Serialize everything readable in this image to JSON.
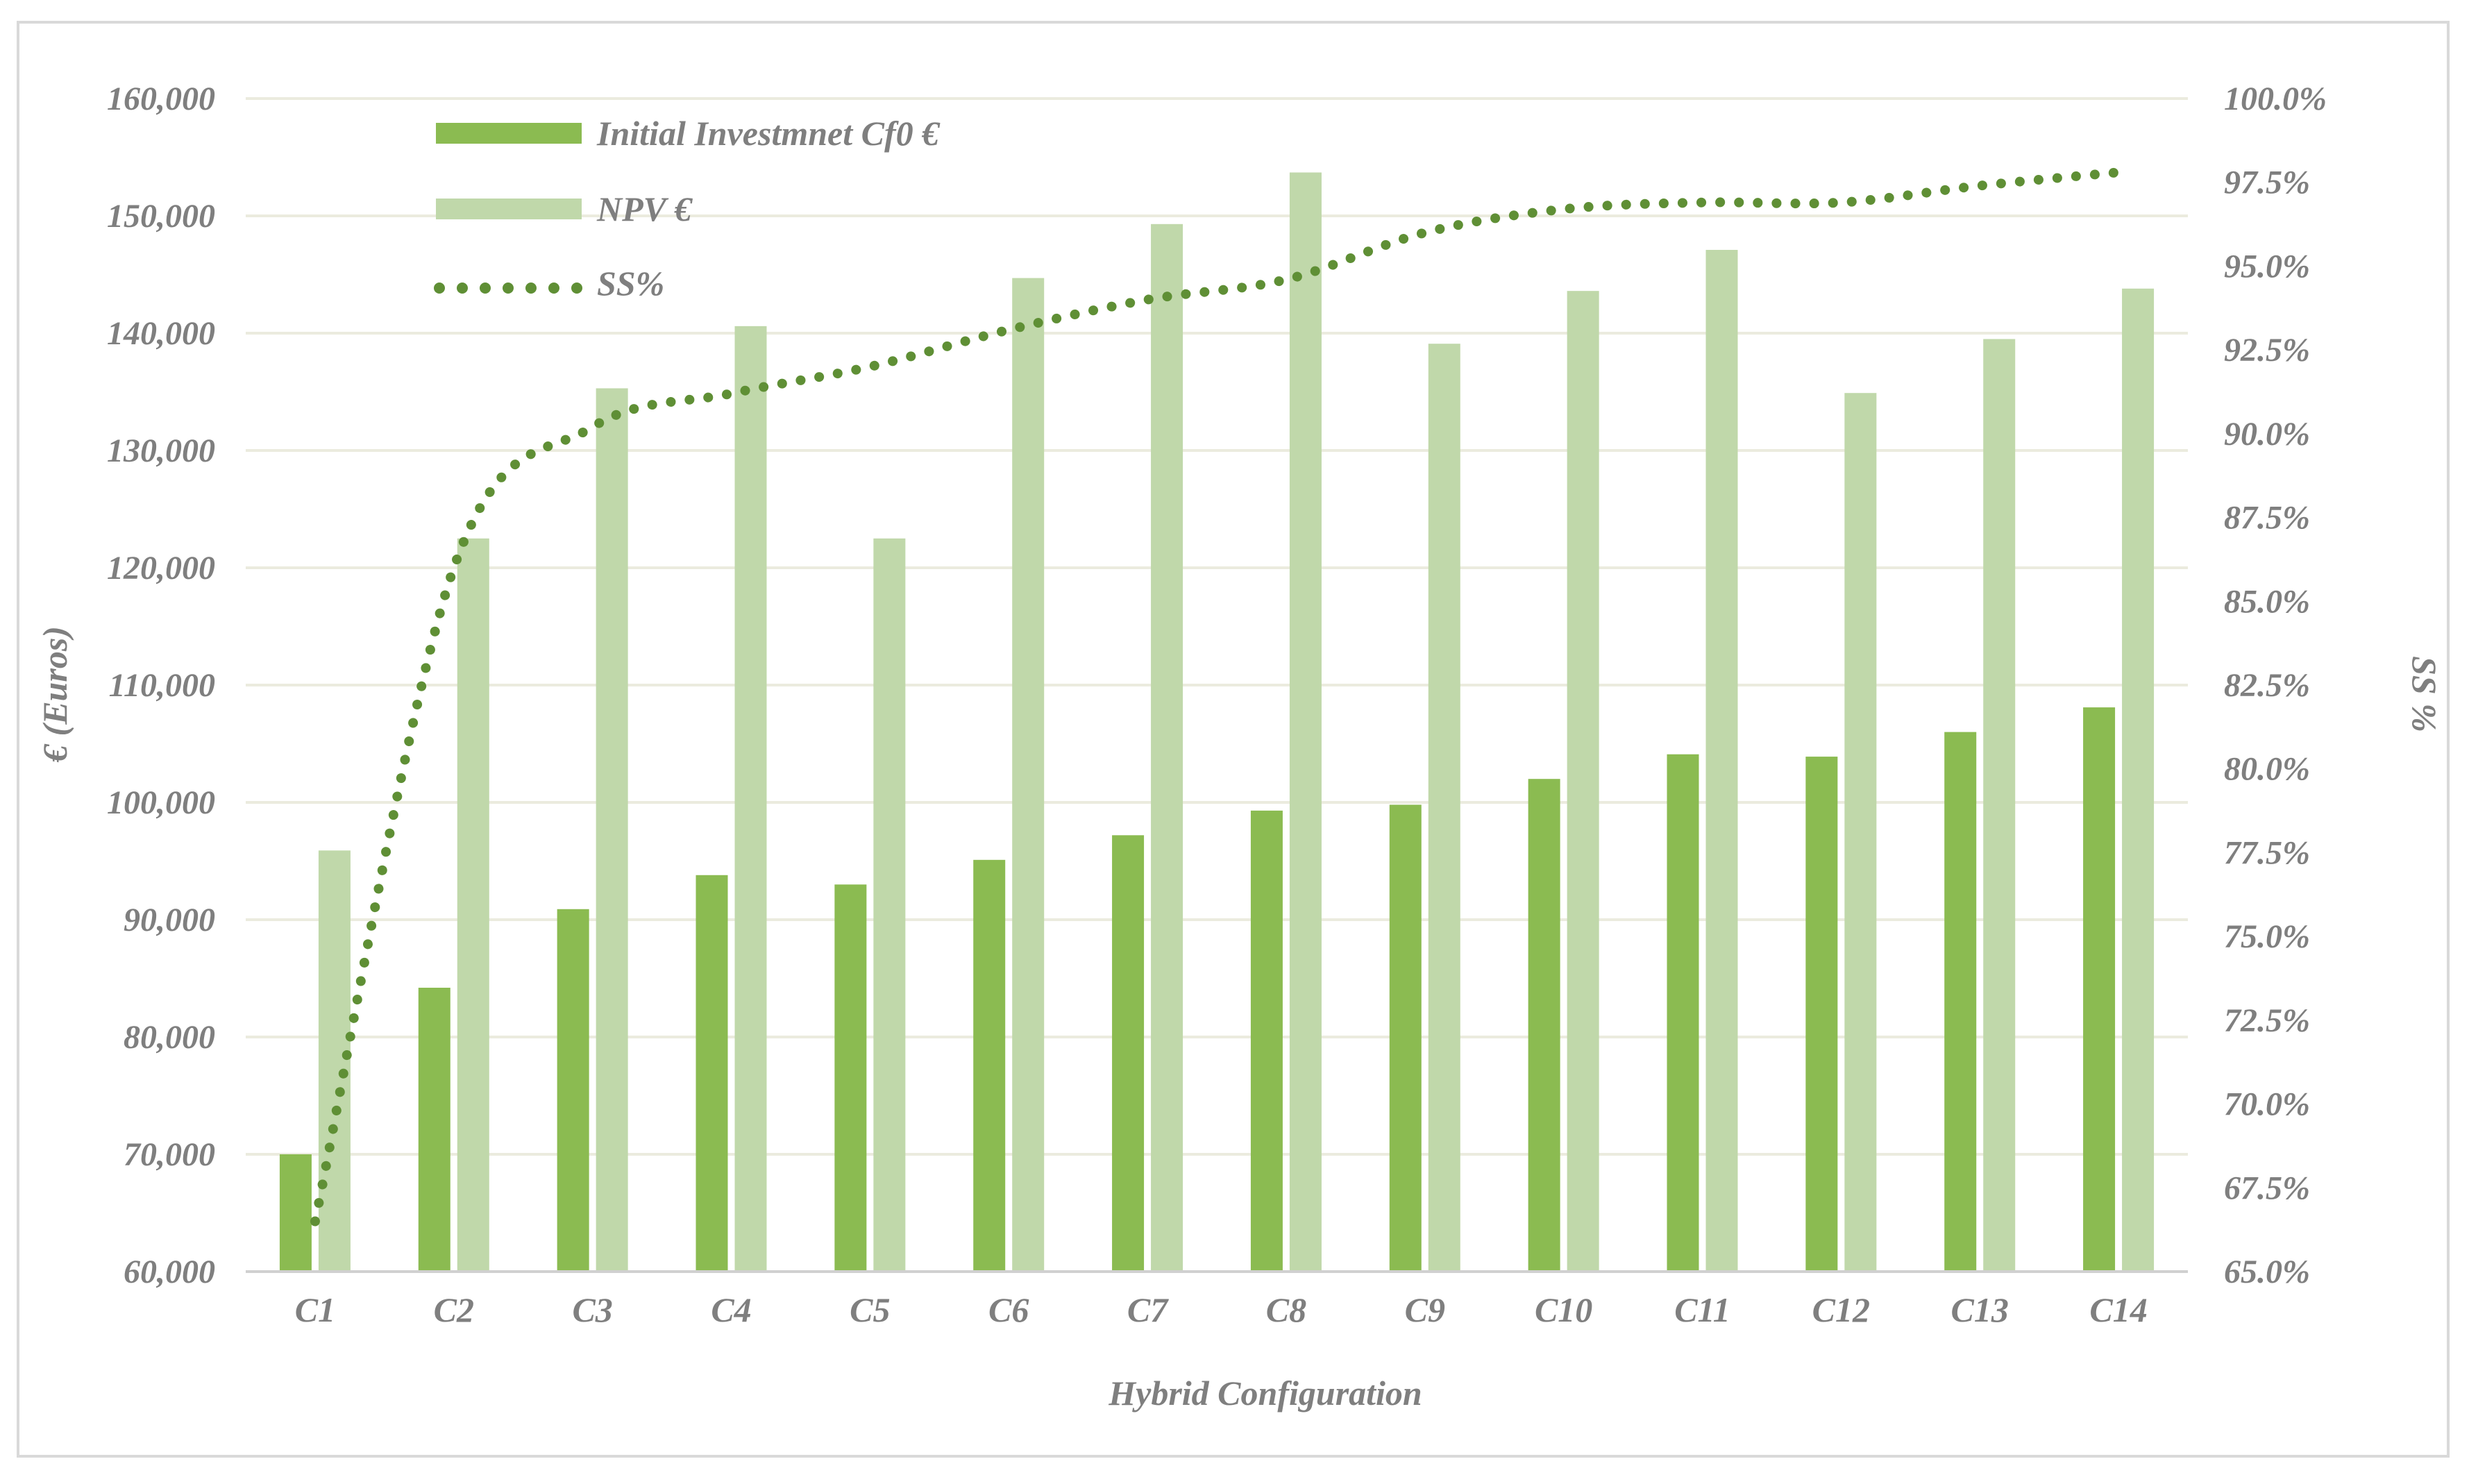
{
  "chart_data": {
    "type": "bar",
    "title": "",
    "xlabel": "Hybrid Configuration",
    "ylabel": "€ (Euros)",
    "y2label": "SS %",
    "ylim": [
      60000,
      160000
    ],
    "y2lim": [
      0.65,
      1.0
    ],
    "y_ticks": [
      "60,000",
      "70,000",
      "80,000",
      "90,000",
      "100,000",
      "110,000",
      "120,000",
      "130,000",
      "140,000",
      "150,000",
      "160,000"
    ],
    "y2_ticks": [
      "65.0%",
      "67.5%",
      "70.0%",
      "72.5%",
      "75.0%",
      "77.5%",
      "80.0%",
      "82.5%",
      "85.0%",
      "87.5%",
      "90.0%",
      "92.5%",
      "95.0%",
      "97.5%",
      "100.0%"
    ],
    "categories": [
      "C1",
      "C2",
      "C3",
      "C4",
      "C5",
      "C6",
      "C7",
      "C8",
      "C9",
      "C10",
      "C11",
      "C12",
      "C13",
      "C14"
    ],
    "series": [
      {
        "name": "Initial Investmnet Cf0  €",
        "kind": "bar",
        "axis": "left",
        "color": "#8bbb51",
        "values": [
          70000,
          84200,
          90900,
          93800,
          93000,
          95100,
          97200,
          99300,
          99800,
          102000,
          104100,
          103900,
          106000,
          108100
        ]
      },
      {
        "name": "NPV €",
        "kind": "bar",
        "axis": "left",
        "color": "#c0d8aa",
        "values": [
          95900,
          122500,
          135300,
          140600,
          122500,
          144700,
          149300,
          153700,
          139100,
          143600,
          147100,
          134900,
          139500,
          143800
        ]
      },
      {
        "name": "SS%",
        "kind": "line-dotted",
        "axis": "right",
        "color": "#5f8f35",
        "values": [
          0.665,
          0.86,
          0.902,
          0.912,
          0.92,
          0.931,
          0.94,
          0.946,
          0.96,
          0.967,
          0.969,
          0.969,
          0.974,
          0.978
        ]
      }
    ],
    "legend_position": "top-left",
    "grid": true
  }
}
